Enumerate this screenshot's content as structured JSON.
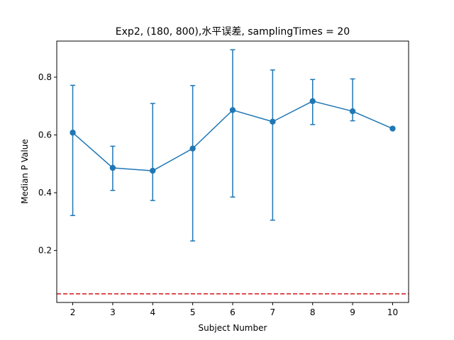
{
  "chart_data": {
    "type": "line",
    "title": "Exp2, (180, 800),水平误差, samplingTimes = 20",
    "xlabel": "Subject Number",
    "ylabel": "Median P Value",
    "xlim": [
      1.6,
      10.4
    ],
    "ylim": [
      0.02,
      0.925
    ],
    "xticks": [
      2,
      3,
      4,
      5,
      6,
      7,
      8,
      9,
      10
    ],
    "yticks": [
      0.2,
      0.4,
      0.6,
      0.8
    ],
    "grid": false,
    "series": [
      {
        "x": [
          2,
          3,
          4,
          5,
          6,
          7,
          8,
          9,
          10
        ],
        "values": [
          0.608,
          0.486,
          0.476,
          0.553,
          0.686,
          0.646,
          0.717,
          0.682,
          0.622
        ],
        "error_upper": [
          0.772,
          0.561,
          0.709,
          0.771,
          0.895,
          0.825,
          0.792,
          0.794,
          0.622
        ],
        "error_lower": [
          0.321,
          0.408,
          0.373,
          0.233,
          0.385,
          0.305,
          0.636,
          0.649,
          0.622
        ],
        "color": "#1f77b4",
        "marker": "circle"
      }
    ],
    "reference_line": {
      "y": 0.05,
      "color": "#d62728",
      "style": "dashed"
    }
  }
}
